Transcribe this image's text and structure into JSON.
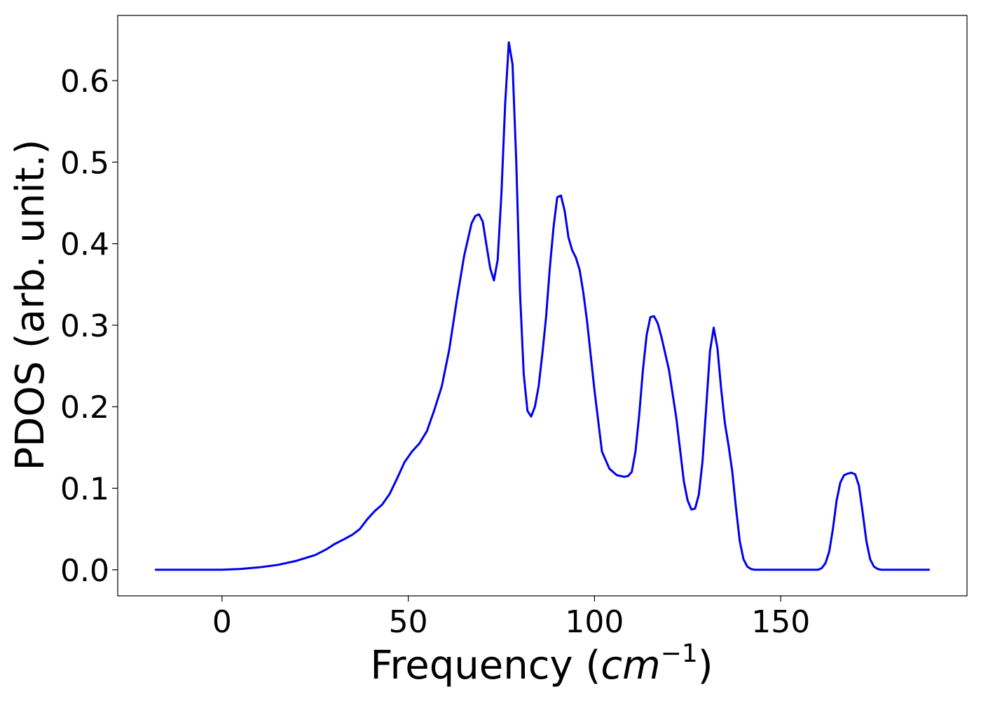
{
  "chart_data": {
    "type": "line",
    "title": "",
    "xlabel": "Frequency (cm⁻¹)",
    "xlabel_parts": {
      "prefix": "Frequency (",
      "italic": "cm",
      "superscript": "−1",
      "suffix": ")"
    },
    "ylabel": "PDOS (arb. unit.)",
    "xlim": [
      -28,
      200
    ],
    "ylim": [
      -0.032,
      0.68
    ],
    "xticks": [
      0,
      50,
      100,
      150
    ],
    "xtick_labels": [
      "0",
      "50",
      "100",
      "150"
    ],
    "yticks": [
      0.0,
      0.1,
      0.2,
      0.3,
      0.4,
      0.5,
      0.6
    ],
    "ytick_labels": [
      "0.0",
      "0.1",
      "0.2",
      "0.3",
      "0.4",
      "0.5",
      "0.6"
    ],
    "grid": false,
    "series": [
      {
        "color": "#0000ee",
        "x": [
          -18,
          0,
          5,
          10,
          15,
          20,
          25,
          28,
          30,
          33,
          35,
          37,
          39,
          41,
          43,
          45,
          47,
          49,
          51,
          53,
          55,
          57,
          59,
          61,
          63,
          65,
          67,
          68,
          69,
          70,
          71,
          72,
          73,
          74,
          75,
          76,
          77,
          78,
          79,
          80,
          81,
          82,
          83,
          84,
          85,
          86,
          87,
          88,
          89,
          90,
          91,
          92,
          93,
          94,
          95,
          96,
          97,
          98,
          100,
          102,
          104,
          106,
          108,
          109,
          110,
          111,
          112,
          113,
          114,
          115,
          116,
          117,
          118,
          120,
          122,
          124,
          125,
          126,
          127,
          128,
          129,
          130,
          131,
          132,
          133,
          134,
          135,
          136,
          137,
          138,
          139,
          140,
          141,
          142,
          143,
          145,
          150,
          155,
          160,
          161,
          162,
          163,
          164,
          165,
          166,
          167,
          168,
          169,
          170,
          171,
          172,
          173,
          174,
          175,
          176,
          177,
          178,
          180,
          190
        ],
        "y": [
          0.0,
          0.0,
          0.001,
          0.003,
          0.006,
          0.011,
          0.018,
          0.025,
          0.031,
          0.038,
          0.043,
          0.05,
          0.062,
          0.072,
          0.08,
          0.093,
          0.112,
          0.132,
          0.145,
          0.155,
          0.17,
          0.196,
          0.225,
          0.27,
          0.33,
          0.385,
          0.425,
          0.434,
          0.436,
          0.427,
          0.398,
          0.37,
          0.355,
          0.38,
          0.46,
          0.57,
          0.647,
          0.62,
          0.5,
          0.34,
          0.24,
          0.195,
          0.188,
          0.2,
          0.225,
          0.265,
          0.31,
          0.37,
          0.42,
          0.457,
          0.459,
          0.44,
          0.408,
          0.392,
          0.383,
          0.368,
          0.34,
          0.305,
          0.22,
          0.145,
          0.124,
          0.116,
          0.114,
          0.115,
          0.12,
          0.145,
          0.19,
          0.245,
          0.288,
          0.31,
          0.311,
          0.302,
          0.285,
          0.245,
          0.185,
          0.108,
          0.085,
          0.074,
          0.075,
          0.092,
          0.133,
          0.2,
          0.268,
          0.297,
          0.272,
          0.222,
          0.18,
          0.152,
          0.12,
          0.075,
          0.035,
          0.013,
          0.004,
          0.001,
          0.0,
          0.0,
          0.0,
          0.0,
          0.0,
          0.002,
          0.008,
          0.022,
          0.05,
          0.085,
          0.107,
          0.116,
          0.118,
          0.119,
          0.117,
          0.103,
          0.07,
          0.035,
          0.013,
          0.004,
          0.001,
          0.0,
          0.0,
          0.0,
          0.0
        ]
      }
    ]
  }
}
